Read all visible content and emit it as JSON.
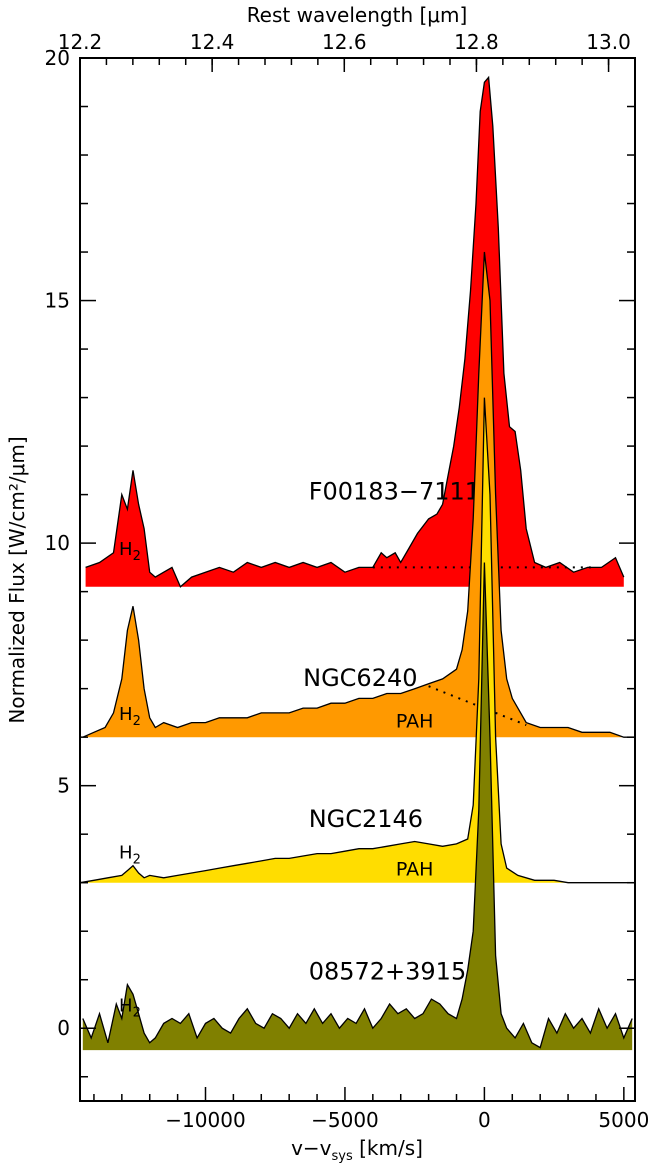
{
  "chart_data": {
    "type": "area",
    "xlabel_main": "v−v",
    "xlabel_sub": "sys",
    "xlabel_unit": " [km/s]",
    "top_axis_label": "Rest wavelength [μm]",
    "ylabel": "Normalized Flux [W/cm²/μm]",
    "xlim": [
      -14500,
      5400
    ],
    "ylim": [
      -1.5,
      20
    ],
    "top_xlim": [
      12.2,
      13.04
    ],
    "x_ticks": [
      {
        "value": -10000,
        "label": "−10000"
      },
      {
        "value": -5000,
        "label": "−5000"
      },
      {
        "value": 0,
        "label": "0"
      },
      {
        "value": 5000,
        "label": "5000"
      }
    ],
    "top_ticks": [
      {
        "value": 12.2,
        "label": "12.2"
      },
      {
        "value": 12.4,
        "label": "12.4"
      },
      {
        "value": 12.6,
        "label": "12.6"
      },
      {
        "value": 12.8,
        "label": "12.8"
      },
      {
        "value": 13.0,
        "label": "13.0"
      }
    ],
    "y_ticks": [
      {
        "value": 0,
        "label": "0"
      },
      {
        "value": 5,
        "label": "5"
      },
      {
        "value": 10,
        "label": "10"
      },
      {
        "value": 15,
        "label": "15"
      },
      {
        "value": 20,
        "label": "20"
      }
    ],
    "series": [
      {
        "name": "F00183−7111",
        "color": "#ff0000",
        "baseline": 9.1,
        "label_pos": [
          -6300,
          10.9
        ],
        "h2_pos": [
          -13100,
          9.75
        ],
        "x": [
          -14300,
          -13800,
          -13300,
          -13000,
          -12800,
          -12600,
          -12400,
          -12200,
          -12000,
          -11800,
          -11500,
          -11200,
          -10900,
          -10500,
          -10000,
          -9500,
          -9000,
          -8500,
          -8000,
          -7500,
          -7000,
          -6500,
          -6000,
          -5500,
          -5000,
          -4500,
          -4000,
          -3700,
          -3500,
          -3200,
          -3000,
          -2700,
          -2400,
          -2000,
          -1700,
          -1500,
          -1300,
          -1100,
          -900,
          -700,
          -500,
          -300,
          -150,
          0,
          150,
          300,
          500,
          700,
          900,
          1100,
          1300,
          1500,
          1800,
          2200,
          2700,
          3200,
          3700,
          4200,
          4700,
          5000
        ],
        "values": [
          9.5,
          9.6,
          9.8,
          11.0,
          10.7,
          11.5,
          10.8,
          10.3,
          9.4,
          9.3,
          9.4,
          9.5,
          9.1,
          9.3,
          9.4,
          9.5,
          9.4,
          9.6,
          9.5,
          9.6,
          9.5,
          9.6,
          9.5,
          9.6,
          9.4,
          9.5,
          9.5,
          9.8,
          9.7,
          9.8,
          9.6,
          9.9,
          10.2,
          10.5,
          10.6,
          10.8,
          11.4,
          12.0,
          12.8,
          13.8,
          15.2,
          17.0,
          18.9,
          19.5,
          19.6,
          18.6,
          16.5,
          13.5,
          12.4,
          12.3,
          11.5,
          10.3,
          9.6,
          9.5,
          9.6,
          9.4,
          9.5,
          9.5,
          9.7,
          9.3
        ],
        "continuum": {
          "x": [
            -4000,
            4000
          ],
          "y": [
            9.5,
            9.5
          ]
        }
      },
      {
        "name": "NGC6240",
        "color": "#ff9900",
        "baseline": 6.0,
        "label_pos": [
          -6500,
          7.05
        ],
        "h2_pos": [
          -13100,
          6.35
        ],
        "pah_pos": [
          -2500,
          6.2
        ],
        "x": [
          -14400,
          -14000,
          -13600,
          -13300,
          -13000,
          -12800,
          -12600,
          -12400,
          -12200,
          -12000,
          -11800,
          -11500,
          -11000,
          -10500,
          -10000,
          -9500,
          -9000,
          -8500,
          -8000,
          -7500,
          -7000,
          -6500,
          -6000,
          -5500,
          -5000,
          -4500,
          -4000,
          -3500,
          -3000,
          -2500,
          -2000,
          -1500,
          -1000,
          -800,
          -600,
          -400,
          -200,
          0,
          200,
          400,
          600,
          800,
          1000,
          1500,
          2000,
          2500,
          3000,
          3500,
          4000,
          4500,
          5000,
          5400
        ],
        "values": [
          6.0,
          6.1,
          6.2,
          6.5,
          7.2,
          8.2,
          8.7,
          8.0,
          7.0,
          6.4,
          6.2,
          6.3,
          6.2,
          6.3,
          6.3,
          6.4,
          6.4,
          6.4,
          6.5,
          6.5,
          6.5,
          6.6,
          6.6,
          6.7,
          6.7,
          6.8,
          6.8,
          6.9,
          6.9,
          7.0,
          7.1,
          7.2,
          7.4,
          7.8,
          8.6,
          10.5,
          13.5,
          16.0,
          15.0,
          11.0,
          8.2,
          7.2,
          6.8,
          6.3,
          6.2,
          6.2,
          6.2,
          6.1,
          6.1,
          6.1,
          6.0,
          6.0
        ],
        "continuum": {
          "x": [
            -2000,
            1500
          ],
          "y": [
            7.05,
            6.25
          ]
        }
      },
      {
        "name": "NGC2146",
        "color": "#ffdd00",
        "baseline": 3.0,
        "label_pos": [
          -6300,
          4.15
        ],
        "h2_pos": [
          -13100,
          3.5
        ],
        "pah_pos": [
          -2500,
          3.15
        ],
        "x": [
          -14500,
          -14000,
          -13500,
          -13000,
          -12800,
          -12600,
          -12400,
          -12200,
          -12000,
          -11500,
          -11000,
          -10500,
          -10000,
          -9500,
          -9000,
          -8500,
          -8000,
          -7500,
          -7000,
          -6500,
          -6000,
          -5500,
          -5000,
          -4500,
          -4000,
          -3500,
          -3000,
          -2500,
          -2000,
          -1500,
          -1000,
          -600,
          -400,
          -200,
          0,
          200,
          400,
          600,
          800,
          1200,
          1800,
          2500,
          3000,
          3500,
          4000,
          4500,
          5000,
          5400
        ],
        "values": [
          3.0,
          3.05,
          3.1,
          3.15,
          3.25,
          3.35,
          3.2,
          3.1,
          3.15,
          3.1,
          3.15,
          3.2,
          3.25,
          3.3,
          3.35,
          3.4,
          3.45,
          3.5,
          3.5,
          3.55,
          3.6,
          3.6,
          3.65,
          3.7,
          3.7,
          3.75,
          3.8,
          3.85,
          3.8,
          3.75,
          3.8,
          3.9,
          4.6,
          7.2,
          13.0,
          11.0,
          6.0,
          3.8,
          3.3,
          3.15,
          3.05,
          3.05,
          3.0,
          3.0,
          3.0,
          3.0,
          3.0,
          3.0
        ]
      },
      {
        "name": "08572+3915",
        "color": "#808000",
        "baseline": -0.45,
        "label_pos": [
          -6300,
          1.0
        ],
        "h2_pos": [
          -13100,
          0.35
        ],
        "x": [
          -14400,
          -14100,
          -13800,
          -13500,
          -13200,
          -13000,
          -12800,
          -12600,
          -12400,
          -12200,
          -12000,
          -11800,
          -11500,
          -11200,
          -10900,
          -10600,
          -10300,
          -10000,
          -9700,
          -9400,
          -9100,
          -8800,
          -8500,
          -8200,
          -7900,
          -7600,
          -7300,
          -7000,
          -6700,
          -6400,
          -6100,
          -5800,
          -5500,
          -5200,
          -4900,
          -4600,
          -4300,
          -4000,
          -3700,
          -3400,
          -3100,
          -2800,
          -2500,
          -2200,
          -1900,
          -1600,
          -1300,
          -1000,
          -800,
          -600,
          -400,
          -200,
          0,
          200,
          400,
          600,
          800,
          1100,
          1400,
          1700,
          2000,
          2300,
          2600,
          2900,
          3200,
          3500,
          3800,
          4100,
          4400,
          4700,
          5000,
          5300
        ],
        "values": [
          0.2,
          -0.2,
          0.3,
          -0.3,
          0.5,
          0.2,
          0.9,
          0.7,
          0.3,
          -0.1,
          -0.3,
          -0.2,
          0.1,
          0.2,
          0.1,
          0.3,
          -0.2,
          0.1,
          0.2,
          0.0,
          -0.1,
          0.2,
          0.4,
          0.1,
          0.0,
          0.3,
          0.2,
          0.0,
          0.3,
          0.1,
          0.4,
          0.1,
          0.3,
          0.0,
          0.2,
          0.1,
          0.4,
          0.0,
          0.2,
          0.5,
          0.3,
          0.4,
          0.2,
          0.3,
          0.6,
          0.5,
          0.3,
          0.2,
          0.6,
          1.2,
          2.0,
          4.5,
          9.6,
          6.0,
          1.5,
          0.3,
          0.0,
          -0.2,
          0.1,
          -0.3,
          -0.4,
          0.2,
          -0.1,
          0.3,
          0.0,
          0.2,
          -0.1,
          0.4,
          0.0,
          0.3,
          -0.2,
          0.2
        ]
      }
    ],
    "annotation_h2": "H",
    "annotation_h2_sub": "2",
    "annotation_pah": "PAH"
  }
}
